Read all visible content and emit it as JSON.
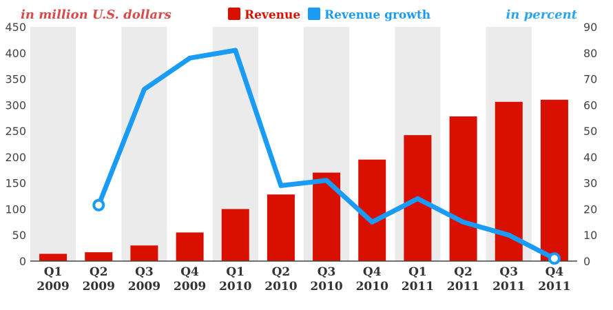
{
  "chart_data": {
    "type": "bar",
    "categories": [
      {
        "quarter": "Q1",
        "year": "2009"
      },
      {
        "quarter": "Q2",
        "year": "2009"
      },
      {
        "quarter": "Q3",
        "year": "2009"
      },
      {
        "quarter": "Q4",
        "year": "2009"
      },
      {
        "quarter": "Q1",
        "year": "2010"
      },
      {
        "quarter": "Q2",
        "year": "2010"
      },
      {
        "quarter": "Q3",
        "year": "2010"
      },
      {
        "quarter": "Q4",
        "year": "2010"
      },
      {
        "quarter": "Q1",
        "year": "2011"
      },
      {
        "quarter": "Q2",
        "year": "2011"
      },
      {
        "quarter": "Q3",
        "year": "2011"
      },
      {
        "quarter": "Q4",
        "year": "2011"
      }
    ],
    "series": [
      {
        "name": "Revenue",
        "type": "bar",
        "axis": "left",
        "color": "#d90f00",
        "values": [
          14,
          17,
          30,
          55,
          100,
          128,
          170,
          195,
          242,
          278,
          306,
          310
        ]
      },
      {
        "name": "Revenue growth",
        "type": "line",
        "axis": "right",
        "color": "#1a9bf5",
        "values": [
          null,
          21.5,
          66,
          78,
          81,
          29,
          31,
          15,
          24,
          15,
          10,
          1
        ]
      }
    ],
    "left_axis": {
      "label": "in million U.S. dollars",
      "color": "#d94a4a",
      "min": 0,
      "max": 450,
      "ticks": [
        "0",
        "50",
        "100",
        "150",
        "200",
        "250",
        "300",
        "350",
        "400",
        "450"
      ]
    },
    "right_axis": {
      "label": "in percent",
      "color": "#2ba4f0",
      "min": 0,
      "max": 90,
      "ticks": [
        "0",
        "10",
        "20",
        "30",
        "40",
        "50",
        "60",
        "70",
        "80",
        "90"
      ]
    },
    "legend_position": "top-center",
    "band_color": "#ebebeb",
    "grid": false
  }
}
